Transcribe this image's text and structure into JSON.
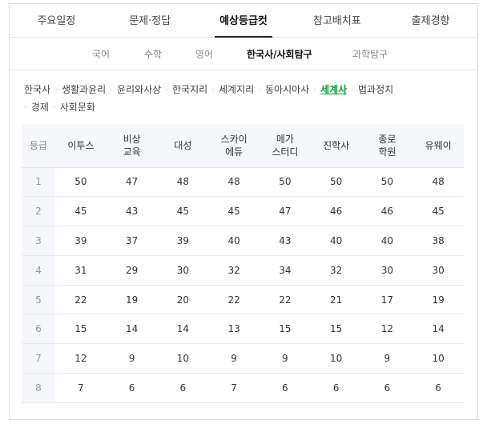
{
  "tabs": [
    "주요일정",
    "문제·정답",
    "예상등급컷",
    "참고배치표",
    "출제경향"
  ],
  "active_tab": 2,
  "subtabs": [
    "국어",
    "수학",
    "영어",
    "한국사/사회탐구",
    "과학탐구"
  ],
  "active_subtab": 3,
  "subjects": [
    "한국사",
    "생활과윤리",
    "윤리와사상",
    "한국지리",
    "세계지리",
    "동아시아사",
    "세계사",
    "법과정치",
    "경제",
    "사회문화"
  ],
  "active_subject": 6,
  "table": {
    "grade_header": "등급",
    "columns": [
      [
        "이투스"
      ],
      [
        "비상",
        "교육"
      ],
      [
        "대성"
      ],
      [
        "스카이",
        "에듀"
      ],
      [
        "메가",
        "스터디"
      ],
      [
        "진학사"
      ],
      [
        "종로",
        "학원"
      ],
      [
        "유웨이"
      ]
    ],
    "rows": [
      {
        "grade": "1",
        "values": [
          "50",
          "47",
          "48",
          "48",
          "50",
          "50",
          "50",
          "48"
        ]
      },
      {
        "grade": "2",
        "values": [
          "45",
          "43",
          "45",
          "45",
          "47",
          "46",
          "46",
          "45"
        ]
      },
      {
        "grade": "3",
        "values": [
          "39",
          "37",
          "39",
          "40",
          "43",
          "40",
          "40",
          "38"
        ]
      },
      {
        "grade": "4",
        "values": [
          "31",
          "29",
          "30",
          "32",
          "34",
          "32",
          "30",
          "30"
        ]
      },
      {
        "grade": "5",
        "values": [
          "22",
          "19",
          "20",
          "22",
          "22",
          "21",
          "17",
          "19"
        ]
      },
      {
        "grade": "6",
        "values": [
          "15",
          "14",
          "14",
          "13",
          "15",
          "15",
          "12",
          "14"
        ]
      },
      {
        "grade": "7",
        "values": [
          "12",
          "9",
          "10",
          "9",
          "9",
          "10",
          "9",
          "10"
        ]
      },
      {
        "grade": "8",
        "values": [
          "7",
          "6",
          "6",
          "7",
          "6",
          "6",
          "6",
          "6"
        ]
      }
    ]
  }
}
